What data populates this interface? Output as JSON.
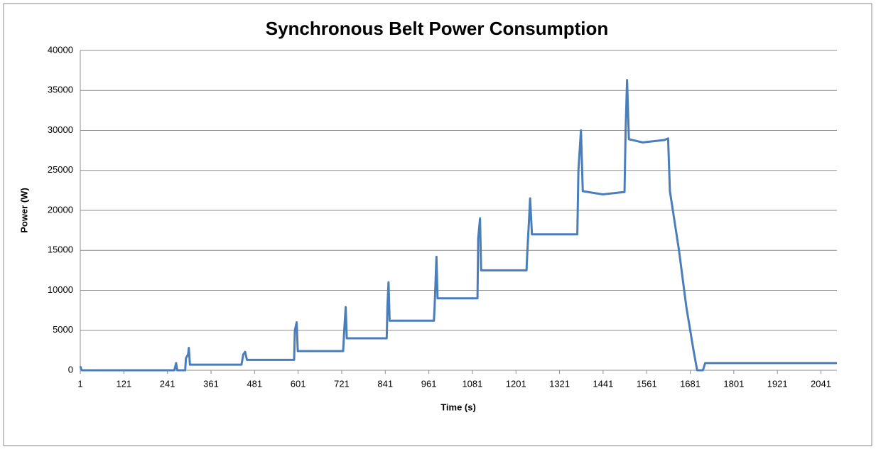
{
  "chart_data": {
    "type": "line",
    "title": "Synchronous Belt Power Consumption",
    "xlabel": "Time (s)",
    "ylabel": "Power (W)",
    "x": [
      1,
      5,
      260,
      265,
      268,
      290,
      292,
      298,
      300,
      303,
      445,
      450,
      455,
      460,
      590,
      592,
      597,
      600,
      725,
      728,
      732,
      735,
      845,
      847,
      850,
      853,
      975,
      977,
      982,
      985,
      1095,
      1097,
      1102,
      1105,
      1230,
      1232,
      1240,
      1245,
      1370,
      1373,
      1380,
      1385,
      1440,
      1500,
      1503,
      1507,
      1512,
      1550,
      1610,
      1620,
      1625,
      1650,
      1670,
      1690,
      1700,
      1716,
      1722,
      2085
    ],
    "series": [
      {
        "name": "Power",
        "color": "#4a7ebb",
        "values": [
          500,
          0,
          0,
          900,
          0,
          0,
          1500,
          2000,
          2800,
          700,
          700,
          2000,
          2300,
          1300,
          1300,
          5000,
          6000,
          2400,
          2400,
          5000,
          7900,
          4000,
          4000,
          8000,
          11000,
          6200,
          6200,
          8000,
          14200,
          9000,
          9000,
          16500,
          19000,
          12500,
          12500,
          14500,
          21500,
          17000,
          17000,
          25000,
          30000,
          22400,
          22000,
          22300,
          30000,
          36300,
          28900,
          28500,
          28800,
          29000,
          22400,
          15000,
          8000,
          2500,
          0,
          0,
          900,
          900
        ]
      }
    ],
    "xlim": [
      1,
      2085
    ],
    "xticks": [
      1,
      121,
      241,
      361,
      481,
      601,
      721,
      841,
      961,
      1081,
      1201,
      1321,
      1441,
      1561,
      1681,
      1801,
      1921,
      2041
    ],
    "ylim": [
      0,
      40000
    ],
    "yticks": [
      0,
      5000,
      10000,
      15000,
      20000,
      25000,
      30000,
      35000,
      40000
    ],
    "grid": true
  }
}
